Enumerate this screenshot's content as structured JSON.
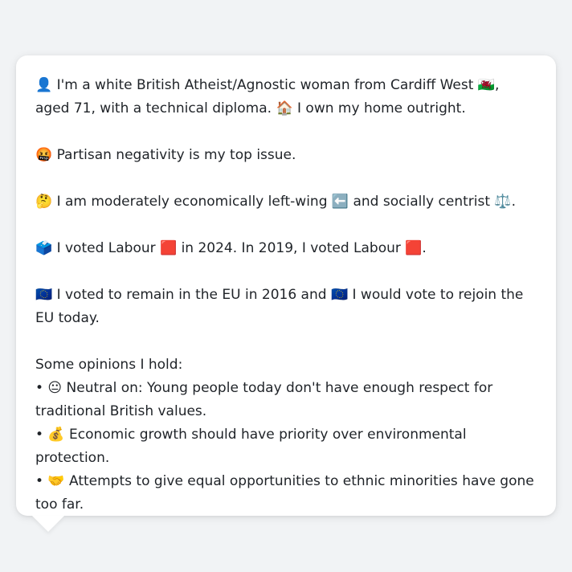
{
  "profile": {
    "intro_text": "👤 I'm a white British Atheist/Agnostic woman from Cardiff West 🏴󠁧󠁢󠁷󠁬󠁳󠁿, aged 71, with a technical diploma. 🏠 I own my home outright.",
    "top_issue_text": "🤬 Partisan negativity is my top issue.",
    "ideology_text": "🤔 I am moderately economically left-wing ⬅️ and socially centrist ⚖️.",
    "vote_text": "🗳️ I voted Labour 🟥 in 2024. In 2019, I voted Labour 🟥.",
    "eu_text": "🇪🇺 I voted to remain in the EU in 2016 and 🇪🇺 I would vote to rejoin the EU today.",
    "opinions_heading": "Some opinions I hold:",
    "opinions": [
      "• 😐 Neutral on: Young people today don't have enough respect for traditional British values.",
      "• 💰 Economic growth should have priority over environmental protection.",
      "• 🤝 Attempts to give equal opportunities to ethnic minorities have gone too far."
    ]
  }
}
